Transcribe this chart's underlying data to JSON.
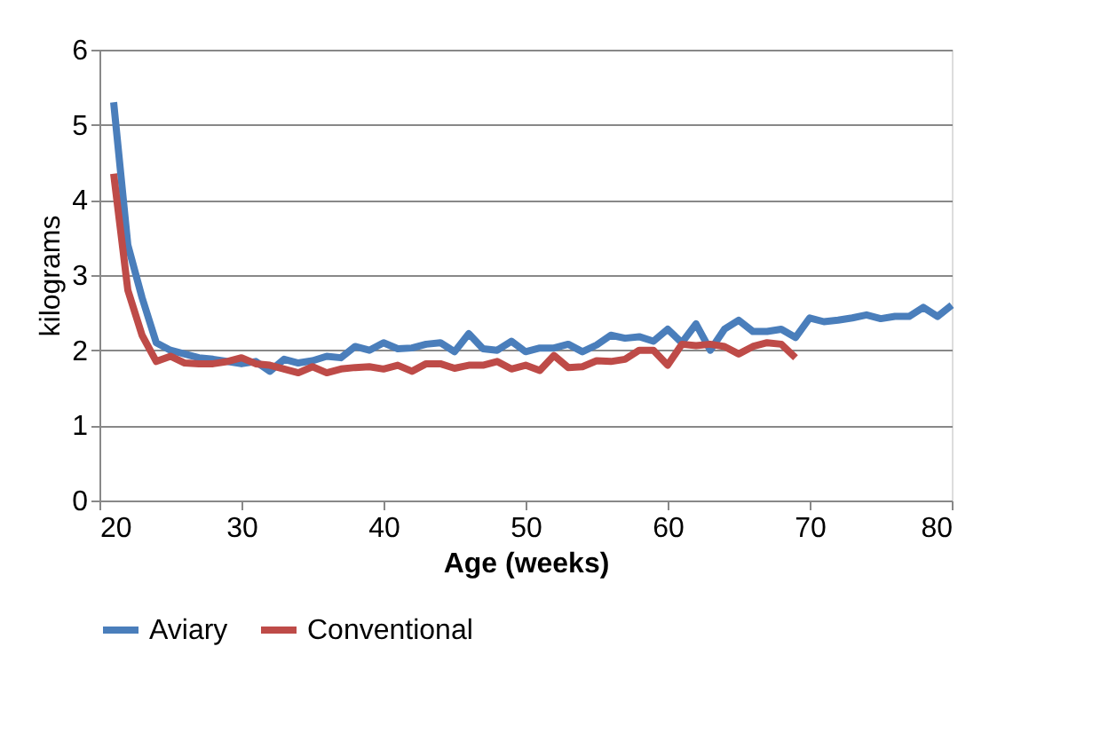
{
  "chart_data": {
    "type": "line",
    "xlabel": "Age (weeks)",
    "ylabel": "kilograms",
    "xlim": [
      20,
      80
    ],
    "xticks": [
      20,
      30,
      40,
      50,
      60,
      70,
      80
    ],
    "ylim": [
      0,
      6
    ],
    "yticks": [
      0,
      1,
      2,
      3,
      4,
      5,
      6
    ],
    "grid": "y",
    "legend": "bottom",
    "marker": "none",
    "line_style": "solid",
    "series": [
      {
        "name": "Aviary",
        "color": "#4a7ebb",
        "x": [
          21,
          22,
          23,
          24,
          25,
          26,
          27,
          28,
          29,
          30,
          31,
          32,
          33,
          34,
          35,
          36,
          37,
          38,
          39,
          40,
          41,
          42,
          43,
          44,
          45,
          46,
          47,
          48,
          49,
          50,
          51,
          52,
          53,
          54,
          55,
          56,
          57,
          58,
          59,
          60,
          61,
          62,
          63,
          64,
          65,
          66,
          67,
          68,
          69,
          70,
          71,
          72,
          73,
          74,
          75,
          76,
          77,
          78,
          79,
          80
        ],
        "values": [
          5.3,
          3.4,
          2.7,
          2.1,
          2.0,
          1.95,
          1.9,
          1.88,
          1.85,
          1.82,
          1.85,
          1.72,
          1.88,
          1.83,
          1.86,
          1.92,
          1.9,
          2.05,
          2.0,
          2.1,
          2.02,
          2.03,
          2.08,
          2.1,
          1.98,
          2.22,
          2.02,
          2.0,
          2.12,
          1.98,
          2.03,
          2.03,
          2.08,
          1.98,
          2.07,
          2.2,
          2.16,
          2.18,
          2.12,
          2.28,
          2.1,
          2.35,
          2.0,
          2.28,
          2.4,
          2.25,
          2.25,
          2.28,
          2.17,
          2.43,
          2.38,
          2.4,
          2.43,
          2.47,
          2.42,
          2.45,
          2.45,
          2.57,
          2.45,
          2.6
        ]
      },
      {
        "name": "Conventional",
        "color": "#be4b48",
        "x": [
          21,
          22,
          23,
          24,
          25,
          26,
          27,
          28,
          29,
          30,
          31,
          32,
          33,
          34,
          35,
          36,
          37,
          38,
          39,
          40,
          41,
          42,
          43,
          44,
          45,
          46,
          47,
          48,
          49,
          50,
          51,
          52,
          53,
          54,
          55,
          56,
          57,
          58,
          59,
          60,
          61,
          62,
          63,
          64,
          65,
          66,
          67,
          68,
          69
        ],
        "values": [
          4.35,
          2.8,
          2.2,
          1.85,
          1.92,
          1.83,
          1.82,
          1.82,
          1.85,
          1.9,
          1.82,
          1.8,
          1.75,
          1.7,
          1.78,
          1.7,
          1.75,
          1.77,
          1.78,
          1.75,
          1.8,
          1.72,
          1.82,
          1.82,
          1.76,
          1.8,
          1.8,
          1.85,
          1.75,
          1.8,
          1.73,
          1.93,
          1.77,
          1.78,
          1.86,
          1.85,
          1.88,
          2.0,
          2.0,
          1.8,
          2.08,
          2.06,
          2.08,
          2.05,
          1.95,
          2.05,
          2.1,
          2.08,
          1.9
        ]
      }
    ]
  }
}
